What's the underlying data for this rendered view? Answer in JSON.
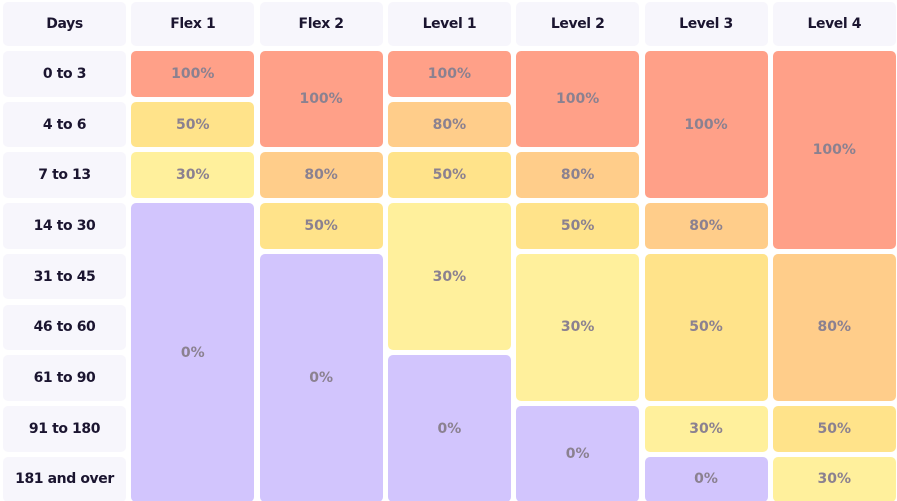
{
  "table": {
    "corner": "Days",
    "rows": [
      "0 to 3",
      "4 to 6",
      "7 to 13",
      "14 to 30",
      "31 to 45",
      "46 to 60",
      "61 to 90",
      "91 to 180",
      "181 and over"
    ],
    "columns": [
      {
        "name": "Flex 1",
        "cells": [
          {
            "label": "100%",
            "span": 1,
            "color": "#ffa088"
          },
          {
            "label": "50%",
            "span": 1,
            "color": "#ffe38a"
          },
          {
            "label": "30%",
            "span": 1,
            "color": "#fff09c"
          },
          {
            "label": "0%",
            "span": 6,
            "color": "#d2c5fd"
          }
        ]
      },
      {
        "name": "Flex 2",
        "cells": [
          {
            "label": "100%",
            "span": 2,
            "color": "#ffa088"
          },
          {
            "label": "80%",
            "span": 1,
            "color": "#ffcd8a"
          },
          {
            "label": "50%",
            "span": 1,
            "color": "#ffe38a"
          },
          {
            "label": "0%",
            "span": 5,
            "color": "#d2c5fd"
          }
        ]
      },
      {
        "name": "Level 1",
        "cells": [
          {
            "label": "100%",
            "span": 1,
            "color": "#ffa088"
          },
          {
            "label": "80%",
            "span": 1,
            "color": "#ffcd8a"
          },
          {
            "label": "50%",
            "span": 1,
            "color": "#ffe38a"
          },
          {
            "label": "30%",
            "span": 3,
            "color": "#fff09c"
          },
          {
            "label": "0%",
            "span": 3,
            "color": "#d2c5fd"
          }
        ]
      },
      {
        "name": "Level 2",
        "cells": [
          {
            "label": "100%",
            "span": 2,
            "color": "#ffa088"
          },
          {
            "label": "80%",
            "span": 1,
            "color": "#ffcd8a"
          },
          {
            "label": "50%",
            "span": 1,
            "color": "#ffe38a"
          },
          {
            "label": "30%",
            "span": 3,
            "color": "#fff09c"
          },
          {
            "label": "0%",
            "span": 2,
            "color": "#d2c5fd"
          }
        ]
      },
      {
        "name": "Level 3",
        "cells": [
          {
            "label": "100%",
            "span": 3,
            "color": "#ffa088"
          },
          {
            "label": "80%",
            "span": 1,
            "color": "#ffcd8a"
          },
          {
            "label": "50%",
            "span": 3,
            "color": "#ffe38a"
          },
          {
            "label": "30%",
            "span": 1,
            "color": "#fff09c"
          },
          {
            "label": "0%",
            "span": 1,
            "color": "#d2c5fd"
          }
        ]
      },
      {
        "name": "Level 4",
        "cells": [
          {
            "label": "100%",
            "span": 4,
            "color": "#ffa088"
          },
          {
            "label": "80%",
            "span": 3,
            "color": "#ffcd8a"
          },
          {
            "label": "50%",
            "span": 1,
            "color": "#ffe38a"
          },
          {
            "label": "30%",
            "span": 1,
            "color": "#fff09c"
          }
        ]
      }
    ]
  }
}
